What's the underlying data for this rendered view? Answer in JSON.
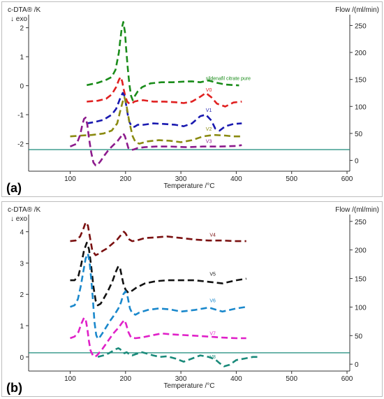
{
  "chart_data": [
    {
      "type": "line",
      "panel_label": "(a)",
      "ylabel": "c-DTA® /K",
      "ylabel_sub": "↓ exo",
      "y2label": "Flow /(ml/min)",
      "xlabel": "Temperature /°C",
      "xlim": [
        25,
        605
      ],
      "ylim": [
        -2.95,
        2.45
      ],
      "y2lim": [
        -20,
        270
      ],
      "xticks": [
        100,
        200,
        300,
        400,
        500,
        600
      ],
      "yticks": [
        -2,
        -1,
        0,
        1,
        2
      ],
      "y2ticks": [
        0,
        50,
        100,
        150,
        200,
        250
      ],
      "grid": false,
      "flow": {
        "value": 20,
        "color": "#1a8a7a"
      },
      "series": [
        {
          "name": "sildenafil citrate pure",
          "color": "#1a8c1a",
          "label_at": [
            345,
            0.2
          ],
          "x": [
            130,
            150,
            165,
            175,
            182,
            185,
            188,
            190,
            193,
            196,
            199,
            201,
            204,
            207,
            210,
            213,
            217,
            222,
            230,
            245,
            265,
            285,
            305,
            320,
            335,
            350,
            365,
            380,
            395,
            405
          ],
          "y": [
            0.02,
            0.1,
            0.2,
            0.3,
            0.55,
            0.85,
            1.15,
            1.5,
            1.95,
            2.2,
            1.85,
            1.3,
            0.6,
            0.05,
            -0.35,
            -0.5,
            -0.35,
            -0.2,
            -0.05,
            0.08,
            0.12,
            0.12,
            0.14,
            0.15,
            0.12,
            0.18,
            0.1,
            0.04,
            0.02,
            0.01
          ]
        },
        {
          "name": "V0",
          "color": "#e02020",
          "label_at": [
            345,
            -0.2
          ],
          "x": [
            130,
            150,
            165,
            175,
            183,
            188,
            191,
            194,
            197,
            200,
            203,
            207,
            211,
            216,
            222,
            232,
            250,
            270,
            290,
            305,
            320,
            335,
            345,
            355,
            365,
            380,
            395,
            410
          ],
          "y": [
            -0.55,
            -0.52,
            -0.45,
            -0.3,
            -0.05,
            0.2,
            0.3,
            0.15,
            -0.15,
            -0.4,
            -0.55,
            -0.62,
            -0.62,
            -0.55,
            -0.52,
            -0.5,
            -0.55,
            -0.55,
            -0.57,
            -0.6,
            -0.55,
            -0.38,
            -0.25,
            -0.4,
            -0.62,
            -0.72,
            -0.58,
            -0.55
          ]
        },
        {
          "name": "V1",
          "color": "#1a1ab0",
          "label_at": [
            345,
            -0.9
          ],
          "x": [
            130,
            145,
            160,
            175,
            183,
            190,
            195,
            198,
            201,
            204,
            207,
            211,
            216,
            222,
            232,
            250,
            270,
            290,
            305,
            320,
            335,
            345,
            355,
            362,
            370,
            380,
            395,
            410
          ],
          "y": [
            -1.3,
            -1.25,
            -1.18,
            -1.0,
            -0.8,
            -0.45,
            -0.25,
            -0.35,
            -0.65,
            -1.0,
            -1.25,
            -1.4,
            -1.42,
            -1.35,
            -1.35,
            -1.3,
            -1.32,
            -1.35,
            -1.4,
            -1.3,
            -1.05,
            -1.0,
            -1.2,
            -1.48,
            -1.55,
            -1.4,
            -1.32,
            -1.3
          ]
        },
        {
          "name": "V2",
          "color": "#8a8a10",
          "label_at": [
            345,
            -1.55
          ],
          "x": [
            100,
            120,
            140,
            160,
            175,
            185,
            190,
            195,
            198,
            201,
            204,
            208,
            213,
            218,
            225,
            240,
            260,
            280,
            300,
            320,
            340,
            360,
            380,
            395,
            410
          ],
          "y": [
            -1.75,
            -1.72,
            -1.7,
            -1.65,
            -1.55,
            -1.3,
            -0.9,
            -0.55,
            -0.4,
            -0.6,
            -0.95,
            -1.35,
            -1.75,
            -1.95,
            -2.0,
            -1.92,
            -1.88,
            -1.9,
            -1.95,
            -1.88,
            -1.75,
            -1.7,
            -1.72,
            -1.75,
            -1.75
          ]
        },
        {
          "name": "V3",
          "color": "#8c1a8c",
          "label_at": [
            345,
            -1.97
          ],
          "x": [
            100,
            112,
            118,
            122,
            125,
            128,
            131,
            134,
            138,
            142,
            146,
            150,
            155,
            162,
            170,
            178,
            186,
            192,
            196,
            199,
            202,
            205,
            210,
            215,
            222,
            235,
            255,
            280,
            310,
            340,
            370,
            400,
            410
          ],
          "y": [
            -2.1,
            -2.0,
            -1.7,
            -1.35,
            -1.15,
            -1.1,
            -1.35,
            -1.8,
            -2.3,
            -2.65,
            -2.75,
            -2.72,
            -2.6,
            -2.4,
            -2.2,
            -2.05,
            -1.9,
            -1.75,
            -1.65,
            -1.75,
            -1.95,
            -2.15,
            -2.22,
            -2.2,
            -2.15,
            -2.12,
            -2.1,
            -2.1,
            -2.12,
            -2.1,
            -2.1,
            -2.08,
            -2.05
          ]
        }
      ]
    },
    {
      "type": "line",
      "panel_label": "(b)",
      "ylabel": "c-DTA® /K",
      "ylabel_sub": "↓ exo",
      "y2label": "Flow /(ml/min)",
      "xlabel": "Temperature /°C",
      "xlim": [
        25,
        605
      ],
      "ylim": [
        -0.45,
        4.55
      ],
      "y2lim": [
        -12,
        262
      ],
      "xticks": [
        100,
        200,
        300,
        400,
        500,
        600
      ],
      "yticks": [
        0,
        1,
        2,
        3,
        4
      ],
      "y2ticks": [
        0,
        50,
        100,
        150,
        200,
        250
      ],
      "grid": false,
      "flow": {
        "value": 20,
        "color": "#1a8a7a"
      },
      "series": [
        {
          "name": "V4",
          "color": "#7a1010",
          "label_at": [
            352,
            3.85
          ],
          "x": [
            100,
            110,
            118,
            124,
            128,
            132,
            136,
            140,
            146,
            152,
            158,
            165,
            175,
            185,
            192,
            197,
            200,
            203,
            207,
            212,
            220,
            235,
            255,
            275,
            300,
            325,
            350,
            375,
            400,
            418
          ],
          "y": [
            3.7,
            3.72,
            3.85,
            4.1,
            4.3,
            4.2,
            3.8,
            3.4,
            3.25,
            3.3,
            3.38,
            3.45,
            3.6,
            3.75,
            3.9,
            4.0,
            3.95,
            3.85,
            3.75,
            3.7,
            3.72,
            3.8,
            3.82,
            3.85,
            3.8,
            3.75,
            3.72,
            3.72,
            3.7,
            3.7
          ]
        },
        {
          "name": "V5",
          "color": "#111111",
          "label_at": [
            352,
            2.6
          ],
          "x": [
            100,
            108,
            115,
            120,
            125,
            130,
            134,
            138,
            142,
            146,
            150,
            155,
            160,
            168,
            176,
            182,
            187,
            190,
            193,
            196,
            200,
            205,
            212,
            220,
            235,
            255,
            275,
            300,
            325,
            350,
            375,
            400,
            418
          ],
          "y": [
            2.45,
            2.45,
            2.6,
            2.95,
            3.4,
            3.65,
            3.45,
            2.9,
            2.25,
            1.8,
            1.65,
            1.7,
            1.85,
            2.1,
            2.4,
            2.7,
            2.9,
            2.85,
            2.6,
            2.35,
            2.15,
            2.05,
            2.12,
            2.22,
            2.35,
            2.42,
            2.45,
            2.45,
            2.45,
            2.4,
            2.35,
            2.45,
            2.5
          ]
        },
        {
          "name": "V6",
          "color": "#1a88cc",
          "label_at": [
            352,
            1.75
          ],
          "x": [
            100,
            108,
            114,
            119,
            124,
            128,
            132,
            135,
            138,
            141,
            144,
            147,
            150,
            153,
            158,
            165,
            172,
            180,
            187,
            192,
            196,
            200,
            204,
            208,
            212,
            218,
            225,
            240,
            260,
            280,
            300,
            325,
            350,
            375,
            400,
            418
          ],
          "y": [
            1.6,
            1.65,
            1.85,
            2.25,
            2.75,
            3.15,
            3.3,
            3.05,
            2.5,
            1.85,
            1.1,
            0.7,
            0.58,
            0.62,
            0.75,
            0.95,
            1.15,
            1.35,
            1.55,
            1.75,
            2.0,
            2.1,
            1.9,
            1.55,
            1.4,
            1.35,
            1.42,
            1.5,
            1.55,
            1.52,
            1.45,
            1.5,
            1.58,
            1.45,
            1.55,
            1.6
          ]
        },
        {
          "name": "V7",
          "color": "#e020c8",
          "label_at": [
            352,
            0.7
          ],
          "x": [
            100,
            108,
            115,
            120,
            125,
            128,
            131,
            134,
            137,
            141,
            145,
            150,
            158,
            168,
            178,
            188,
            194,
            198,
            201,
            205,
            210,
            218,
            228,
            245,
            265,
            285,
            305,
            325,
            350,
            375,
            400,
            418
          ],
          "y": [
            0.6,
            0.65,
            0.8,
            1.05,
            1.25,
            1.2,
            0.9,
            0.5,
            0.2,
            0.05,
            0.0,
            0.08,
            0.25,
            0.5,
            0.75,
            0.95,
            1.1,
            1.18,
            1.05,
            0.8,
            0.62,
            0.6,
            0.62,
            0.68,
            0.75,
            0.72,
            0.7,
            0.68,
            0.65,
            0.62,
            0.6,
            0.6
          ]
        },
        {
          "name": "V8",
          "color": "#1a8a7a",
          "label_at": [
            352,
            -0.05
          ],
          "x": [
            150,
            160,
            170,
            178,
            183,
            187,
            190,
            194,
            198,
            202,
            206,
            212,
            220,
            230,
            240,
            250,
            262,
            275,
            290,
            305,
            320,
            335,
            350,
            362,
            370,
            378,
            388,
            400,
            415,
            430,
            440
          ],
          "y": [
            0.0,
            0.05,
            0.12,
            0.2,
            0.25,
            0.28,
            0.25,
            0.18,
            0.12,
            0.15,
            0.1,
            0.05,
            0.1,
            0.15,
            0.1,
            0.05,
            0.0,
            0.02,
            -0.05,
            -0.15,
            -0.05,
            0.05,
            0.0,
            -0.08,
            -0.2,
            -0.3,
            -0.25,
            -0.1,
            -0.05,
            0.0,
            0.0
          ]
        }
      ]
    }
  ]
}
